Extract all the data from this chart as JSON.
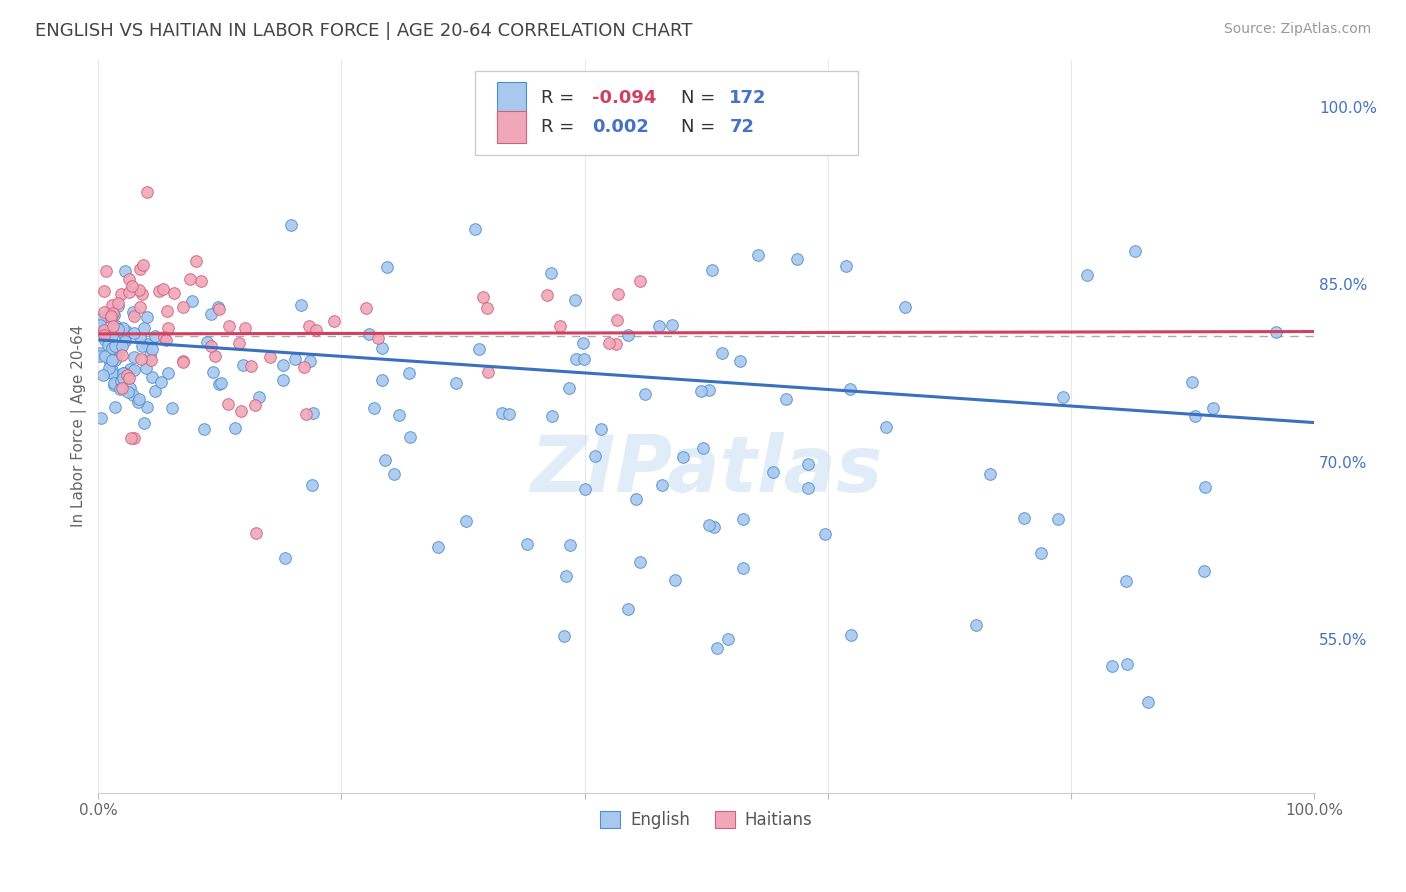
{
  "title": "ENGLISH VS HAITIAN IN LABOR FORCE | AGE 20-64 CORRELATION CHART",
  "source_text": "Source: ZipAtlas.com",
  "ylabel": "In Labor Force | Age 20-64",
  "watermark": "ZIPatlas",
  "xlim": [
    0.0,
    1.0
  ],
  "ylim": [
    0.42,
    1.04
  ],
  "x_ticks": [
    0.0,
    0.2,
    0.4,
    0.6,
    0.8,
    1.0
  ],
  "x_tick_labels": [
    "0.0%",
    "",
    "",
    "",
    "",
    "100.0%"
  ],
  "y_tick_labels_right": [
    "100.0%",
    "85.0%",
    "70.0%",
    "55.0%"
  ],
  "y_ticks_right": [
    1.0,
    0.85,
    0.7,
    0.55
  ],
  "english_color": "#a8c8f0",
  "haitian_color": "#f0a8b8",
  "english_edge_color": "#5090c8",
  "haitian_edge_color": "#d06080",
  "english_line_color": "#3a70c0",
  "haitian_line_color": "#d04060",
  "english_R": -0.094,
  "english_N": 172,
  "haitian_R": 0.002,
  "haitian_N": 72,
  "background_color": "#ffffff",
  "grid_color": "#dddddd",
  "title_color": "#444444",
  "right_tick_color": "#4472c4",
  "watermark_color": "#c8dff5",
  "dashed_line_y": 0.806,
  "english_trend": [
    0.0,
    0.803,
    1.0,
    0.733
  ],
  "haitian_trend": [
    0.0,
    0.808,
    1.0,
    0.81
  ],
  "legend_R_neg_color": "#d04060",
  "legend_R_pos_color": "#4472c4"
}
